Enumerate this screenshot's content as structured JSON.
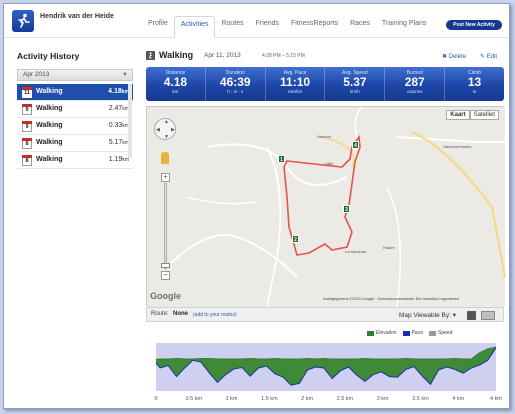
{
  "header": {
    "user_name": "Hendrik van der Heide",
    "tabs": [
      {
        "label": "Profile",
        "active": false
      },
      {
        "label": "Activities",
        "active": true
      },
      {
        "label": "Routes",
        "active": false
      },
      {
        "label": "Friends",
        "active": false
      },
      {
        "label": "FitnessReports",
        "active": false
      },
      {
        "label": "Races",
        "active": false
      },
      {
        "label": "Training Plans",
        "active": false
      }
    ],
    "post_button": "Post New Activity"
  },
  "sidebar": {
    "title": "Activity History",
    "month": "Apr 2013",
    "activities": [
      {
        "day": "11",
        "name": "Walking",
        "distance": "4.18",
        "unit": "km",
        "selected": true
      },
      {
        "day": "9",
        "name": "Walking",
        "distance": "2.47",
        "unit": "km",
        "selected": false
      },
      {
        "day": "9",
        "name": "Walking",
        "distance": "0.33",
        "unit": "km",
        "selected": false
      },
      {
        "day": "8",
        "name": "Walking",
        "distance": "5.17",
        "unit": "km",
        "selected": false
      },
      {
        "day": "8",
        "name": "Walking",
        "distance": "1.19",
        "unit": "km",
        "selected": false
      }
    ]
  },
  "activity": {
    "title": "Walking",
    "date": "Apr 11, 2013",
    "time": "4:28 PM – 5:15 PM",
    "delete_label": "Delete",
    "edit_label": "Edit",
    "stats": [
      {
        "label": "Distance",
        "value": "4.18",
        "unit": "km"
      },
      {
        "label": "Duration",
        "value": "46:39",
        "unit": "h : m : s"
      },
      {
        "label": "Avg. Pace",
        "value": "11:10",
        "unit": "min/km"
      },
      {
        "label": "Avg. Speed",
        "value": "5.37",
        "unit": "km/h"
      },
      {
        "label": "Burned",
        "value": "287",
        "unit": "calories"
      },
      {
        "label": "Climb",
        "value": "13",
        "unit": "m"
      }
    ]
  },
  "map": {
    "type_buttons": [
      "Kaart",
      "Satelliet"
    ],
    "google_logo": "Google",
    "copyright": "Kaartgegevens ©2013 Google · Gebruiksvoorwaarden  Een kaartfout rapporteren",
    "places": [
      "Hantum",
      "Hantumerhoeke",
      "Ulbe",
      "Hiaure",
      "Lenckerpad"
    ],
    "markers": [
      "1",
      "2",
      "3",
      "4"
    ]
  },
  "route_bar": {
    "label": "Route:",
    "value": "None",
    "add_link": "(add to your routes)",
    "viewable_label": "Map Viewable By:"
  },
  "chart_data": {
    "type": "area",
    "series": [
      {
        "name": "Elevation",
        "color": "#2f7d2f"
      },
      {
        "name": "Pace",
        "color": "#1a2fb0"
      },
      {
        "name": "Speed",
        "color": "#9a9a9a"
      }
    ],
    "xlabel": "",
    "x_ticks": [
      "0",
      "0.5 km",
      "1 km",
      "1.5 km",
      "2 km",
      "2.5 km",
      "3 km",
      "3.5 km",
      "4 km",
      "4 km"
    ],
    "x": [
      0,
      0.05,
      0.15,
      0.25,
      0.35,
      0.45,
      0.55,
      0.65,
      0.75,
      0.85,
      0.95,
      1.05,
      1.15,
      1.25,
      1.35,
      1.45,
      1.55,
      1.65,
      1.75,
      1.85,
      1.95,
      2.05,
      2.15,
      2.25,
      2.35,
      2.45,
      2.55,
      2.65,
      2.75,
      2.85,
      2.95,
      3.05,
      3.15,
      3.25,
      3.35,
      3.45,
      3.55,
      3.65,
      3.75,
      3.85,
      3.95,
      4.05,
      4.15
    ],
    "pace": [
      0.42,
      0.52,
      0.47,
      0.7,
      0.52,
      0.36,
      0.4,
      0.62,
      0.82,
      0.66,
      0.54,
      0.51,
      0.69,
      0.52,
      0.48,
      0.64,
      0.71,
      0.88,
      0.84,
      0.56,
      0.5,
      0.52,
      0.74,
      0.58,
      0.5,
      0.67,
      0.8,
      0.66,
      0.6,
      0.7,
      0.71,
      0.55,
      0.49,
      0.69,
      0.86,
      0.56,
      0.5,
      0.55,
      0.63,
      0.52,
      0.46,
      0.36,
      0.1
    ],
    "elevation": [
      0.34,
      0.33,
      0.33,
      0.32,
      0.33,
      0.33,
      0.32,
      0.32,
      0.33,
      0.33,
      0.33,
      0.33,
      0.32,
      0.33,
      0.33,
      0.32,
      0.33,
      0.33,
      0.33,
      0.32,
      0.33,
      0.32,
      0.33,
      0.33,
      0.33,
      0.33,
      0.32,
      0.33,
      0.33,
      0.33,
      0.33,
      0.32,
      0.33,
      0.33,
      0.33,
      0.33,
      0.33,
      0.32,
      0.33,
      0.33,
      0.2,
      0.12,
      0.08
    ]
  }
}
